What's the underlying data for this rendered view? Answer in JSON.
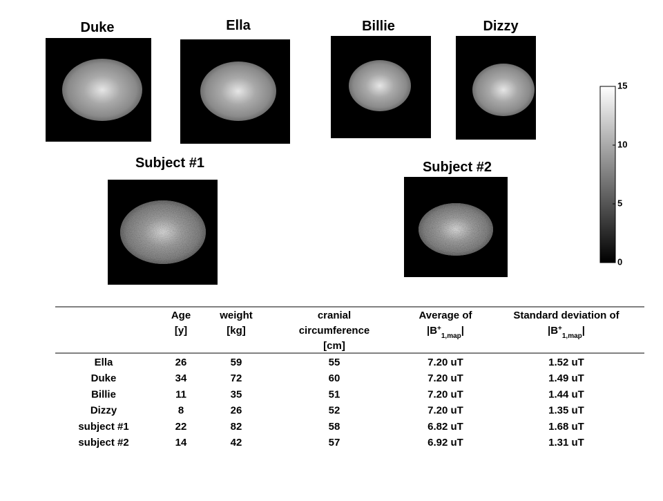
{
  "panels": [
    {
      "label": "Duke"
    },
    {
      "label": "Ella"
    },
    {
      "label": "Billie"
    },
    {
      "label": "Dizzy"
    },
    {
      "label": "Subject #1"
    },
    {
      "label": "Subject #2"
    }
  ],
  "colorbar": {
    "ticks": [
      0,
      5,
      10,
      15
    ]
  },
  "table": {
    "header": [
      [
        "Age",
        "[y]"
      ],
      [
        "weight",
        "[kg]"
      ],
      [
        "cranial",
        "circumference",
        "[cm]"
      ],
      [
        "Average of",
        [
          "|B",
          "+",
          "1,map",
          "|"
        ]
      ],
      [
        "Standard deviation of",
        [
          "|B",
          "+",
          "1,map",
          "|"
        ]
      ]
    ],
    "rows": [
      [
        "Ella",
        "26",
        "59",
        "55",
        "7.20 uT",
        "1.52 uT"
      ],
      [
        "Duke",
        "34",
        "72",
        "60",
        "7.20 uT",
        "1.49 uT"
      ],
      [
        "Billie",
        "11",
        "35",
        "51",
        "7.20 uT",
        "1.44 uT"
      ],
      [
        "Dizzy",
        "8",
        "26",
        "52",
        "7.20 uT",
        "1.35 uT"
      ],
      [
        "subject #1",
        "22",
        "82",
        "58",
        "6.82 uT",
        "1.68 uT"
      ],
      [
        "subject #2",
        "14",
        "42",
        "57",
        "6.92 uT",
        "1.31 uT"
      ]
    ]
  }
}
